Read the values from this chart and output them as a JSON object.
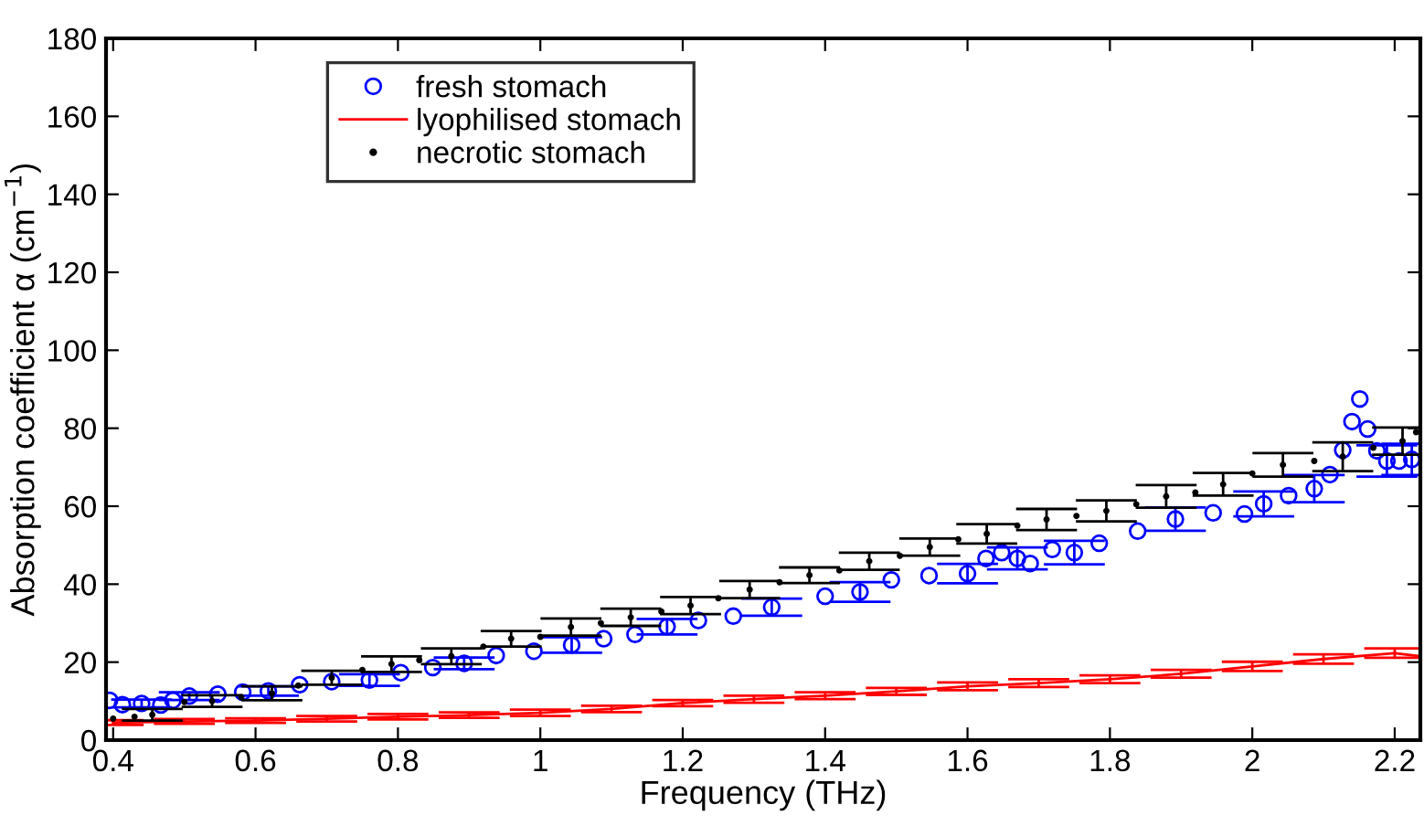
{
  "chart_data": {
    "type": "scatter",
    "xlabel": "Frequency (THz)",
    "ylabel": "Absorption coefficient α (cm$^{−1}$)",
    "xlim": [
      0.39,
      2.236
    ],
    "xticks": [
      0.4,
      0.6,
      0.8,
      1,
      1.2,
      1.4,
      1.6,
      1.8,
      2,
      2.2
    ],
    "ylim": [
      0,
      180
    ],
    "yticks": [
      0,
      20,
      40,
      60,
      80,
      100,
      120,
      140,
      160,
      180
    ],
    "grid": false,
    "legend": "top left",
    "series": [
      {
        "name": "fresh stomach",
        "marker": "circle",
        "color": "#0000ff",
        "x": [
          0.395,
          0.413,
          0.44,
          0.467,
          0.484,
          0.507,
          0.547,
          0.582,
          0.618,
          0.662,
          0.707,
          0.76,
          0.804,
          0.849,
          0.893,
          0.938,
          0.991,
          1.044,
          1.089,
          1.133,
          1.178,
          1.222,
          1.271,
          1.325,
          1.4,
          1.449,
          1.493,
          1.546,
          1.6,
          1.626,
          1.648,
          1.67,
          1.688,
          1.719,
          1.75,
          1.785,
          1.839,
          1.892,
          1.945,
          1.989,
          2.016,
          2.051,
          2.087,
          2.109,
          2.127,
          2.14,
          2.151,
          2.162,
          2.175,
          2.189,
          2.206,
          2.224
        ],
        "values": [
          10.2,
          9.1,
          9.4,
          9,
          10.2,
          11.3,
          11.8,
          12.3,
          12.6,
          14.2,
          15,
          15.4,
          17.3,
          18.6,
          19.7,
          21.7,
          22.8,
          24.4,
          26,
          27.1,
          29.1,
          30.7,
          31.8,
          34.1,
          36.9,
          38,
          41.1,
          42.2,
          42.7,
          46.6,
          48.1,
          46.6,
          45.3,
          48.9,
          48.1,
          50.5,
          53.6,
          56.7,
          58.3,
          58,
          60.6,
          62.7,
          64.5,
          68.1,
          74.4,
          81.7,
          87.5,
          79.8,
          74.2,
          71.6,
          71.6,
          72
        ],
        "errors": [
          null,
          null,
          1,
          null,
          null,
          1,
          null,
          null,
          1.2,
          null,
          null,
          1.5,
          null,
          null,
          1.5,
          null,
          null,
          2,
          null,
          null,
          2,
          null,
          null,
          2.2,
          null,
          2.5,
          null,
          null,
          2.5,
          null,
          null,
          2.8,
          null,
          null,
          3,
          null,
          null,
          3,
          null,
          null,
          3.2,
          null,
          3.5,
          null,
          null,
          null,
          null,
          null,
          null,
          4,
          null,
          4
        ]
      },
      {
        "name": "lyophilised stomach",
        "type": "line",
        "marker": "none",
        "line_style": "solid",
        "color": "#ff0000",
        "x": [
          0.4,
          0.5,
          0.6,
          0.7,
          0.8,
          0.9,
          1.0,
          1.1,
          1.2,
          1.3,
          1.4,
          1.5,
          1.6,
          1.7,
          1.8,
          1.9,
          2.0,
          2.1,
          2.2,
          2.236
        ],
        "values": [
          4.5,
          4.8,
          5,
          5.5,
          6,
          6.4,
          7,
          8,
          9.5,
          10.5,
          11.4,
          12.5,
          13.8,
          14.6,
          15.6,
          17,
          18.9,
          20.8,
          22.3,
          21.5
        ],
        "errors": [
          0.6,
          0.6,
          0.6,
          0.7,
          0.7,
          0.7,
          0.8,
          0.8,
          0.8,
          0.9,
          0.9,
          0.9,
          1,
          1,
          1,
          1,
          1.2,
          1.2,
          1.2,
          null
        ]
      },
      {
        "name": "necrotic stomach",
        "marker": "dot",
        "color": "#000000",
        "x": [
          0.4,
          0.43,
          0.455,
          0.5,
          0.539,
          0.58,
          0.623,
          0.66,
          0.707,
          0.75,
          0.791,
          0.83,
          0.875,
          0.92,
          0.959,
          1.0,
          1.043,
          1.085,
          1.127,
          1.17,
          1.211,
          1.25,
          1.294,
          1.336,
          1.378,
          1.42,
          1.462,
          1.505,
          1.547,
          1.587,
          1.627,
          1.67,
          1.711,
          1.753,
          1.795,
          1.837,
          1.879,
          1.92,
          1.959,
          2.0,
          2.043,
          2.087,
          2.127,
          2.17,
          2.211,
          2.23
        ],
        "values": [
          5.5,
          6,
          6.5,
          9.8,
          10,
          11,
          12,
          14,
          16,
          18,
          19.5,
          20.5,
          21.5,
          24,
          26,
          26.5,
          29,
          30,
          31.5,
          33,
          34.5,
          36.4,
          38.6,
          40.5,
          42.3,
          43.5,
          45.9,
          47.3,
          49.5,
          51.5,
          52.9,
          55,
          56.6,
          57.5,
          58.8,
          60.5,
          62.5,
          63.5,
          65.6,
          68.4,
          70.6,
          71.6,
          72.7,
          75,
          76.7,
          79
        ],
        "errors": [
          null,
          null,
          1.5,
          null,
          1.5,
          null,
          1.8,
          null,
          1.8,
          null,
          2,
          null,
          2,
          null,
          2,
          null,
          2.2,
          null,
          2.2,
          null,
          2.2,
          null,
          2.2,
          null,
          2,
          null,
          2.2,
          null,
          2.2,
          null,
          2.5,
          null,
          2.7,
          null,
          2.7,
          null,
          2.9,
          null,
          2.9,
          null,
          3,
          null,
          3.7,
          null,
          3.5,
          null
        ]
      }
    ]
  }
}
